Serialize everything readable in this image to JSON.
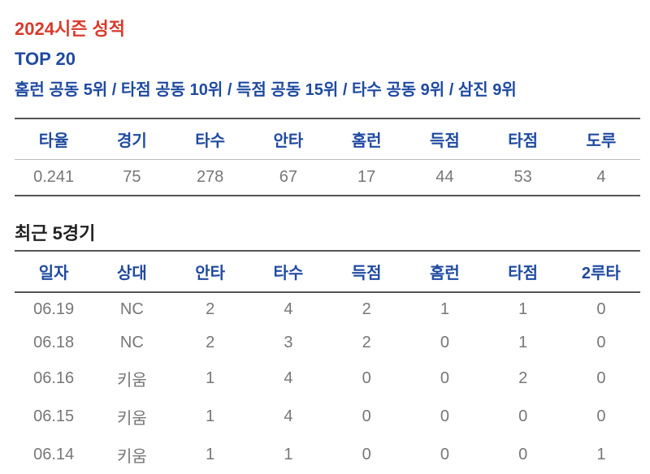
{
  "colors": {
    "red": "#d93a2b",
    "navy": "#1f4aa0",
    "body_text": "#555555",
    "muted": "#777777"
  },
  "season": {
    "title": "2024시즌 성적",
    "top20_label": "TOP 20",
    "rank_summary": "홈런 공동 5위 / 타점 공동 10위 / 득점 공동 15위 / 타수 공동 9위 / 삼진 9위",
    "stats": {
      "headers": [
        "타율",
        "경기",
        "타수",
        "안타",
        "홈런",
        "득점",
        "타점",
        "도루"
      ],
      "values": [
        "0.241",
        "75",
        "278",
        "67",
        "17",
        "44",
        "53",
        "4"
      ]
    }
  },
  "recent": {
    "title": "최근 5경기",
    "headers": [
      "일자",
      "상대",
      "안타",
      "타수",
      "득점",
      "홈런",
      "타점",
      "2루타"
    ],
    "rows": [
      [
        "06.19",
        "NC",
        "2",
        "4",
        "2",
        "1",
        "1",
        "0"
      ],
      [
        "06.18",
        "NC",
        "2",
        "3",
        "2",
        "0",
        "1",
        "0"
      ],
      [
        "06.16",
        "키움",
        "1",
        "4",
        "0",
        "0",
        "2",
        "0"
      ],
      [
        "06.15",
        "키움",
        "1",
        "4",
        "0",
        "0",
        "0",
        "0"
      ],
      [
        "06.14",
        "키움",
        "1",
        "1",
        "0",
        "0",
        "0",
        "1"
      ]
    ]
  }
}
